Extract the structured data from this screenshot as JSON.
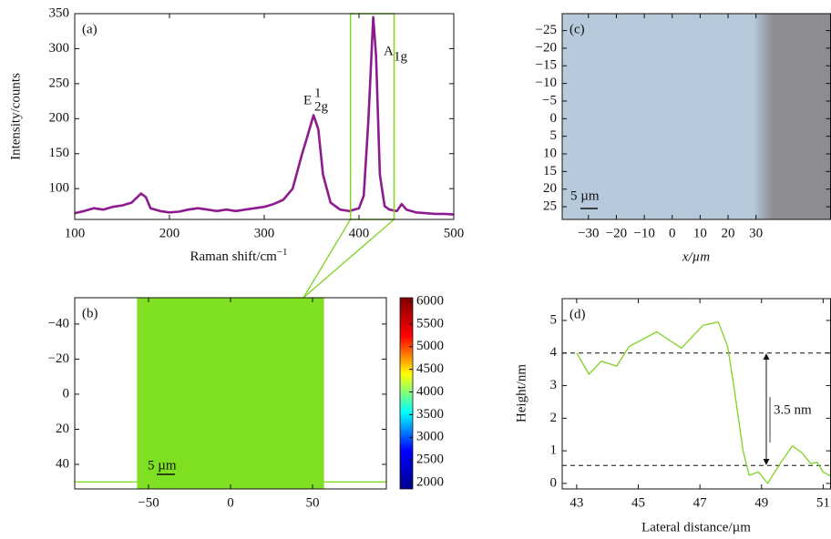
{
  "chart_data": [
    {
      "type": "line",
      "panel_label": "(a)",
      "xlabel": "Raman shift/cm",
      "xlabel_sup": "−1",
      "ylabel": "Intensity/counts",
      "x": [
        100,
        110,
        120,
        130,
        140,
        150,
        160,
        170,
        175,
        180,
        190,
        200,
        210,
        220,
        230,
        240,
        250,
        260,
        270,
        280,
        290,
        300,
        310,
        320,
        330,
        340,
        345,
        352,
        357,
        362,
        370,
        380,
        390,
        400,
        405,
        410,
        415,
        418,
        422,
        427,
        432,
        440,
        445,
        450,
        460,
        470,
        480,
        490,
        500
      ],
      "values": [
        65,
        68,
        72,
        70,
        74,
        76,
        80,
        93,
        88,
        72,
        68,
        66,
        67,
        70,
        72,
        70,
        68,
        70,
        68,
        70,
        72,
        74,
        78,
        84,
        100,
        150,
        172,
        205,
        185,
        120,
        80,
        70,
        68,
        72,
        90,
        200,
        345,
        290,
        120,
        75,
        70,
        68,
        78,
        70,
        66,
        65,
        64,
        64,
        63
      ],
      "color": "#8e1b8e",
      "xlim": [
        100,
        500
      ],
      "xticks": [
        100,
        200,
        300,
        400,
        500
      ],
      "ylim": [
        56,
        350
      ],
      "yticks": [
        100,
        150,
        200,
        250,
        300,
        350
      ],
      "highlight_x": [
        391,
        437
      ],
      "highlight_color": "#7ed321",
      "annotations": [
        {
          "text": "E",
          "sup": "1",
          "sub": "2g"
        },
        {
          "text": "A",
          "sub": "1g"
        }
      ]
    },
    {
      "type": "map",
      "panel_label": "(b)",
      "xlim": [
        -95,
        95
      ],
      "xticks": [
        {
          "value": -50,
          "label": "−50"
        },
        0,
        50
      ],
      "ylim": [
        -55,
        54
      ],
      "yticks": [
        {
          "value": -40,
          "label": "−40"
        },
        {
          "value": -20,
          "label": "−20"
        },
        0,
        20,
        40
      ],
      "region_x": [
        -57,
        57
      ],
      "line_y": 50,
      "color": "#7ee021",
      "scale_bar": "5 µm",
      "colorbar": {
        "lim": [
          1860,
          6080
        ],
        "ticks": [
          2000,
          2500,
          3000,
          3500,
          4000,
          4500,
          5000,
          5500,
          6000
        ],
        "colors": [
          "#00008f",
          "#0000ff",
          "#00ffff",
          "#ffff00",
          "#ff0000",
          "#800000"
        ]
      }
    },
    {
      "type": "image",
      "panel_label": "(c)",
      "xlabel": "x/µm",
      "xlim": [
        -39.4,
        56.7
      ],
      "xticks": [
        {
          "value": -30,
          "label": "−30"
        },
        {
          "value": -20,
          "label": "−20"
        },
        {
          "value": -10,
          "label": "−10"
        },
        0,
        10,
        20,
        30
      ],
      "ylim": [
        -29.8,
        28.6
      ],
      "yticks": [
        {
          "value": -25,
          "label": "−25"
        },
        {
          "value": -20,
          "label": "−20"
        },
        {
          "value": -15,
          "label": "−15"
        },
        {
          "value": -10,
          "label": "−10"
        },
        {
          "value": -5,
          "label": "−5"
        },
        0,
        5,
        10,
        15,
        20,
        25
      ],
      "colors": [
        "#b6cadb",
        "#8c8d91"
      ],
      "edge_x": [
        29,
        36
      ],
      "scale_bar": "5 µm"
    },
    {
      "type": "line",
      "panel_label": "(d)",
      "xlabel": "Lateral distance/µm",
      "ylabel": "Height/nm",
      "x": [
        43,
        43.4,
        43.8,
        44.3,
        44.7,
        45.6,
        46.4,
        47.1,
        47.6,
        47.9,
        48.1,
        48.4,
        48.6,
        48.9,
        49.2,
        49.6,
        50.0,
        50.3,
        50.6,
        50.8,
        51.0,
        51.3
      ],
      "values": [
        4.0,
        3.35,
        3.75,
        3.6,
        4.2,
        4.65,
        4.15,
        4.85,
        4.95,
        4.2,
        3.0,
        1.0,
        0.25,
        0.35,
        0.0,
        0.6,
        1.15,
        0.95,
        0.6,
        0.65,
        0.35,
        0.2
      ],
      "color": "#7ed321",
      "xlim": [
        42.53,
        51.24
      ],
      "xticks": [
        43,
        45,
        47,
        49,
        51
      ],
      "ylim": [
        -0.17,
        5.67
      ],
      "yticks": [
        0,
        1,
        2,
        3,
        4,
        5
      ],
      "hlines": [
        4.0,
        0.55
      ],
      "step_label": "3.5 nm"
    }
  ]
}
